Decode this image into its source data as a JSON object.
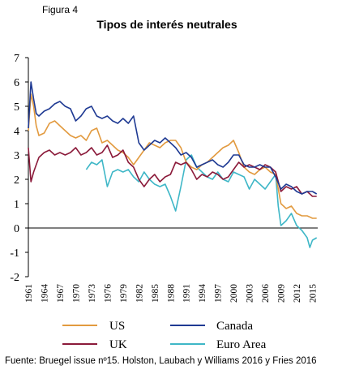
{
  "figure_label": "Figura 4",
  "source_text": "Fuente: Bruegel issue nº15. Holston, Laubach y Williams 2016 y Fries 2016",
  "chart_data": {
    "type": "line",
    "title": "Tipos de interés neutrales",
    "xlabel": "",
    "ylabel": "",
    "xlim": [
      1961,
      2016
    ],
    "ylim": [
      -2,
      7
    ],
    "yticks": [
      -2,
      -1,
      0,
      1,
      2,
      3,
      4,
      5,
      6,
      7
    ],
    "xticks": [
      1961,
      1964,
      1967,
      1970,
      1973,
      1976,
      1979,
      1982,
      1985,
      1988,
      1991,
      1994,
      1997,
      2000,
      2003,
      2006,
      2009,
      2012,
      2015
    ],
    "grid": false,
    "legend_position": "bottom",
    "series": [
      {
        "name": "US",
        "color": "#E29A3F",
        "x": [
          1961,
          1961.5,
          1962,
          1962.5,
          1963,
          1964,
          1965,
          1966,
          1967,
          1968,
          1969,
          1970,
          1971,
          1972,
          1973,
          1974,
          1975,
          1976,
          1977,
          1978,
          1979,
          1980,
          1981,
          1982,
          1983,
          1984,
          1985,
          1986,
          1987,
          1988,
          1989,
          1990,
          1991,
          1992,
          1993,
          1994,
          1995,
          1996,
          1997,
          1998,
          1999,
          2000,
          2001,
          2002,
          2003,
          2004,
          2005,
          2006,
          2007,
          2008,
          2009,
          2010,
          2011,
          2012,
          2013,
          2014,
          2015,
          2015.8
        ],
        "values": [
          4.0,
          5.5,
          5.0,
          4.2,
          3.8,
          3.9,
          4.3,
          4.4,
          4.2,
          4.0,
          3.8,
          3.7,
          3.8,
          3.6,
          4.0,
          4.1,
          3.5,
          3.6,
          3.4,
          3.2,
          3.1,
          2.9,
          2.6,
          2.9,
          3.2,
          3.5,
          3.4,
          3.3,
          3.5,
          3.6,
          3.6,
          3.3,
          2.7,
          2.5,
          2.4,
          2.6,
          2.7,
          2.9,
          3.1,
          3.3,
          3.4,
          3.6,
          3.1,
          2.5,
          2.3,
          2.2,
          2.4,
          2.5,
          2.3,
          2.2,
          1.0,
          0.8,
          0.9,
          0.6,
          0.5,
          0.5,
          0.4,
          0.4
        ]
      },
      {
        "name": "Canada",
        "color": "#1F3A93",
        "x": [
          1961,
          1961.5,
          1962,
          1962.5,
          1963,
          1964,
          1965,
          1966,
          1967,
          1968,
          1969,
          1970,
          1971,
          1972,
          1973,
          1974,
          1975,
          1976,
          1977,
          1978,
          1979,
          1980,
          1981,
          1982,
          1983,
          1984,
          1985,
          1986,
          1987,
          1988,
          1989,
          1990,
          1991,
          1992,
          1993,
          1994,
          1995,
          1996,
          1997,
          1998,
          1999,
          2000,
          2001,
          2002,
          2003,
          2004,
          2005,
          2006,
          2007,
          2008,
          2009,
          2010,
          2011,
          2012,
          2013,
          2014,
          2015,
          2015.8
        ],
        "values": [
          4.1,
          6.0,
          5.3,
          4.7,
          4.6,
          4.8,
          4.9,
          5.1,
          5.2,
          5.0,
          4.9,
          4.4,
          4.6,
          4.9,
          5.0,
          4.6,
          4.5,
          4.6,
          4.4,
          4.3,
          4.5,
          4.3,
          4.6,
          3.5,
          3.2,
          3.4,
          3.6,
          3.5,
          3.7,
          3.5,
          3.3,
          3.0,
          3.1,
          2.9,
          2.5,
          2.6,
          2.7,
          2.8,
          2.6,
          2.5,
          2.7,
          3.0,
          3.0,
          2.6,
          2.5,
          2.5,
          2.6,
          2.5,
          2.5,
          2.1,
          1.6,
          1.8,
          1.7,
          1.5,
          1.4,
          1.5,
          1.5,
          1.4
        ]
      },
      {
        "name": "UK",
        "color": "#8B1A3A",
        "x": [
          1961,
          1961.5,
          1962,
          1962.5,
          1963,
          1964,
          1965,
          1966,
          1967,
          1968,
          1969,
          1970,
          1971,
          1972,
          1973,
          1974,
          1975,
          1976,
          1977,
          1978,
          1979,
          1980,
          1981,
          1982,
          1983,
          1984,
          1985,
          1986,
          1987,
          1988,
          1989,
          1990,
          1991,
          1992,
          1993,
          1994,
          1995,
          1996,
          1997,
          1998,
          1999,
          2000,
          2001,
          2002,
          2003,
          2004,
          2005,
          2006,
          2007,
          2008,
          2009,
          2010,
          2011,
          2012,
          2013,
          2014,
          2015,
          2015.8
        ],
        "values": [
          3.3,
          1.9,
          2.3,
          2.6,
          2.9,
          3.1,
          3.2,
          3.0,
          3.1,
          3.0,
          3.1,
          3.3,
          3.0,
          3.1,
          3.3,
          3.0,
          3.1,
          3.4,
          2.9,
          3.0,
          3.2,
          2.7,
          2.5,
          2.0,
          1.7,
          2.0,
          2.2,
          1.9,
          2.1,
          2.2,
          2.7,
          2.6,
          2.7,
          2.4,
          2.0,
          2.2,
          2.1,
          2.3,
          2.2,
          2.0,
          2.1,
          2.4,
          2.7,
          2.5,
          2.6,
          2.5,
          2.4,
          2.6,
          2.5,
          2.3,
          1.5,
          1.7,
          1.6,
          1.7,
          1.4,
          1.5,
          1.3,
          1.3
        ]
      },
      {
        "name": "Euro Area",
        "color": "#3FB7C7",
        "x": [
          1972,
          1973,
          1974,
          1975,
          1976,
          1977,
          1978,
          1979,
          1980,
          1981,
          1982,
          1983,
          1984,
          1985,
          1986,
          1987,
          1988,
          1989,
          1990,
          1991,
          1992,
          1993,
          1994,
          1995,
          1996,
          1997,
          1998,
          1999,
          2000,
          2001,
          2002,
          2003,
          2004,
          2005,
          2006,
          2007,
          2008,
          2008.5,
          2009,
          2010,
          2011,
          2012,
          2013,
          2014,
          2014.5,
          2015,
          2015.8
        ],
        "values": [
          2.4,
          2.7,
          2.6,
          2.8,
          1.7,
          2.3,
          2.4,
          2.3,
          2.4,
          2.1,
          1.9,
          2.3,
          2.0,
          1.8,
          1.7,
          1.8,
          1.3,
          0.7,
          1.7,
          2.8,
          3.0,
          2.5,
          2.3,
          2.1,
          2.0,
          2.3,
          2.0,
          1.9,
          2.3,
          2.2,
          2.1,
          1.6,
          2.0,
          1.8,
          1.6,
          1.9,
          2.2,
          0.9,
          0.1,
          0.3,
          0.6,
          0.1,
          -0.1,
          -0.4,
          -0.8,
          -0.5,
          -0.4
        ]
      }
    ]
  }
}
